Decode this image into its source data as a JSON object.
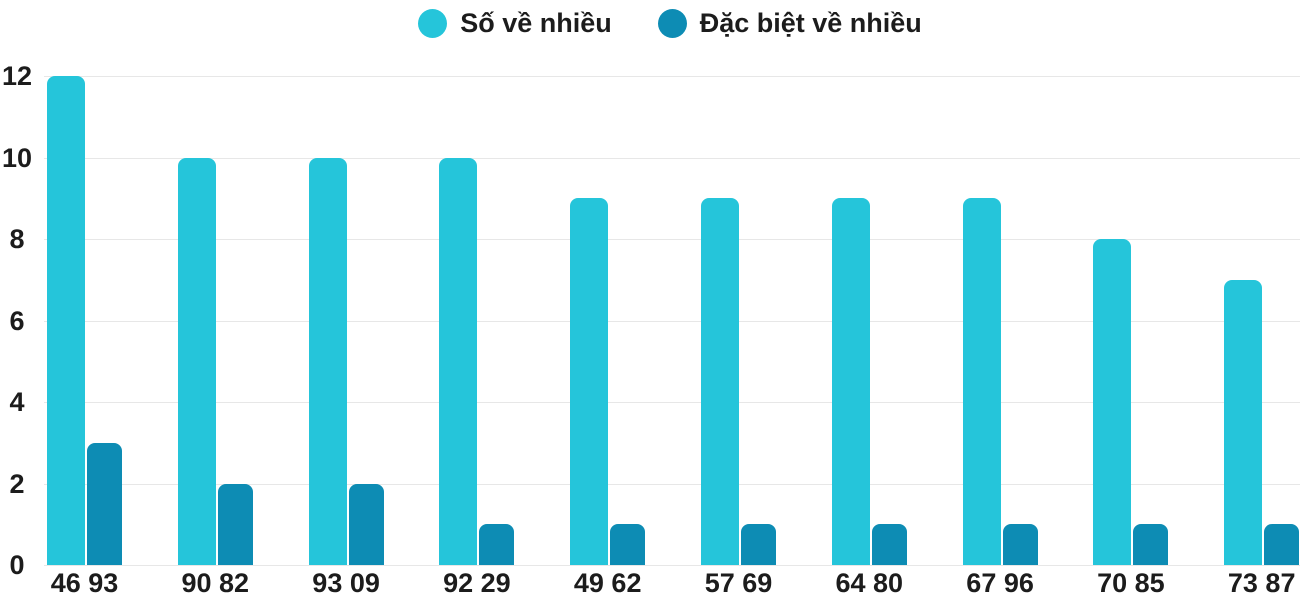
{
  "chart_data": {
    "type": "bar",
    "title": "",
    "xlabel": "",
    "ylabel": "",
    "categories": [
      "46 93",
      "90 82",
      "93 09",
      "92 29",
      "49 62",
      "57 69",
      "64 80",
      "67 96",
      "70 85",
      "73 87"
    ],
    "series": [
      {
        "name": "Số về nhiều",
        "color": "#25c5da",
        "values": [
          12,
          10,
          10,
          10,
          9,
          9,
          9,
          9,
          8,
          7
        ]
      },
      {
        "name": "Đặc biệt về nhiều",
        "color": "#0d8cb4",
        "values": [
          3,
          2,
          2,
          1,
          1,
          1,
          1,
          1,
          1,
          1
        ]
      }
    ],
    "ylim": [
      0,
      12
    ],
    "yticks": [
      0,
      2,
      4,
      6,
      8,
      10,
      12
    ],
    "grid": true,
    "legend_position": "top"
  },
  "colors": {
    "series1": "#25c5da",
    "series2": "#0d8cb4",
    "gridline": "#e7e7e7",
    "text": "#1c1c1c",
    "background": "#ffffff"
  }
}
